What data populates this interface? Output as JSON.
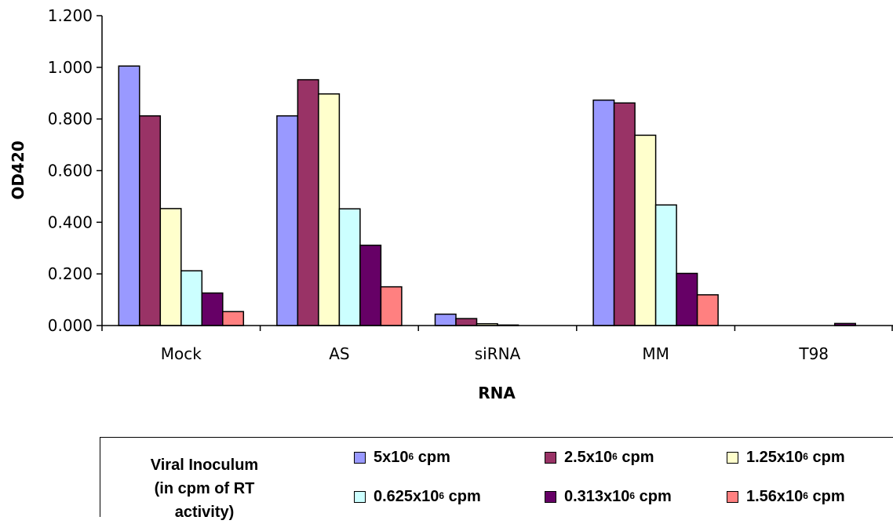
{
  "chart_data": {
    "type": "bar",
    "xlabel": "RNA",
    "ylabel": "OD420",
    "ylim": [
      0,
      1.2
    ],
    "yticks": [
      "0.000",
      "0.200",
      "0.400",
      "0.600",
      "0.800",
      "1.000",
      "1.200"
    ],
    "categories": [
      "Mock",
      "AS",
      "siRNA",
      "MM",
      "T98"
    ],
    "series": [
      {
        "name": "5x10^6 cpm",
        "color": "#9999ff",
        "values": [
          1.005,
          0.812,
          0.044,
          0.873,
          0.0
        ]
      },
      {
        "name": "2.5x10^6 cpm",
        "color": "#993366",
        "values": [
          0.812,
          0.952,
          0.027,
          0.862,
          0.0
        ]
      },
      {
        "name": "1.25x10^6 cpm",
        "color": "#ffffcc",
        "values": [
          0.453,
          0.897,
          0.007,
          0.737,
          0.0
        ]
      },
      {
        "name": "0.625x10^6 cpm",
        "color": "#ccffff",
        "values": [
          0.212,
          0.452,
          0.002,
          0.467,
          0.0
        ]
      },
      {
        "name": "0.313x10^6 cpm",
        "color": "#660066",
        "values": [
          0.126,
          0.311,
          0.0,
          0.202,
          0.008
        ]
      },
      {
        "name": "1.56x10^6 cpm",
        "color": "#ff8080",
        "values": [
          0.054,
          0.15,
          0.0,
          0.119,
          0.0
        ]
      }
    ],
    "legend": {
      "placement": "bottom",
      "title_line1": "Viral Inoculum",
      "title_line2": "(in cpm of RT activity)",
      "items": [
        {
          "prefix": "5x10",
          "exp": "6",
          "suffix": " cpm"
        },
        {
          "prefix": "2.5x10",
          "exp": "6",
          "suffix": " cpm"
        },
        {
          "prefix": "1.25x10",
          "exp": "6",
          "suffix": " cpm"
        },
        {
          "prefix": "0.625x10",
          "exp": "6",
          "suffix": " cpm"
        },
        {
          "prefix": "0.313x10",
          "exp": "6",
          "suffix": " cpm"
        },
        {
          "prefix": "1.56x10",
          "exp": "6",
          "suffix": " cpm"
        }
      ]
    }
  }
}
